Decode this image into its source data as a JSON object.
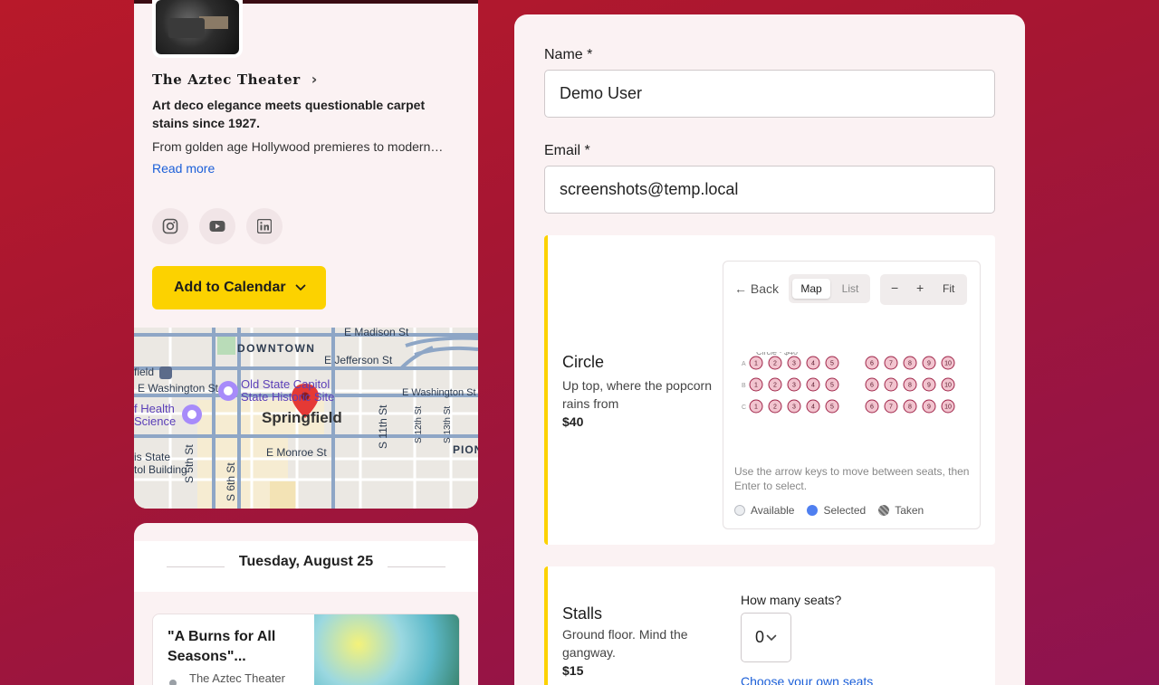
{
  "venue": {
    "name": "The Aztec Theater",
    "tagline": "Art deco elegance meets questionable carpet stains since 1927.",
    "description": "From golden age Hollywood premieres to modern…",
    "read_more": "Read more",
    "socials": [
      "instagram-icon",
      "youtube-icon",
      "linkedin-icon"
    ],
    "calendar_button": "Add to Calendar"
  },
  "map": {
    "labels": {
      "downtown": "DOWNTOWN",
      "madison": "E Madison St",
      "jefferson": "E Jefferson St",
      "washington_w": "E Washington St",
      "washington_e": "E Washington St",
      "capitol": "Old State Capitol",
      "historic": "State Historic Site",
      "springfield": "Springfield",
      "health": "f Health",
      "science": "Science",
      "field": "field",
      "monroe": "E Monroe St",
      "state_line1": "is State",
      "state_line2": "tol Building",
      "s5": "S 5th St",
      "s6": "S 6th St",
      "s11": "S 11th St",
      "s12": "S 12th St",
      "s13": "S 13th St",
      "pion": "PION"
    }
  },
  "schedule": {
    "date": "Tuesday, August 25",
    "event": {
      "title": "\"A Burns for All Seasons\"...",
      "venue": "The Aztec Theater"
    }
  },
  "form": {
    "name_label": "Name *",
    "name_value": "Demo User",
    "email_label": "Email *",
    "email_value": "screenshots@temp.local",
    "accent_color": "#fcd200",
    "sections": [
      {
        "title": "Circle",
        "description": "Up top, where the popcorn rains from",
        "price": "$40",
        "seatmap": {
          "back": "Back",
          "view_map": "Map",
          "view_list": "List",
          "zoom_out": "−",
          "zoom_in": "+",
          "fit": "Fit",
          "section_caption": "Circle · $40",
          "rows": [
            "A",
            "B",
            "C"
          ],
          "left_seats": [
            "1",
            "2",
            "3",
            "4",
            "5"
          ],
          "right_seats": [
            "6",
            "7",
            "8",
            "9",
            "10"
          ],
          "help": "Use the arrow keys to move between seats, then Enter to select.",
          "legend": {
            "available": "Available",
            "selected": "Selected",
            "taken": "Taken"
          },
          "colors": {
            "seat_fill": "#f2c4cf",
            "seat_stroke": "#a0264a",
            "selected": "#4f7ff0",
            "taken": "#7a7a7a",
            "available": "#e5e7eb"
          }
        }
      },
      {
        "title": "Stalls",
        "description": "Ground floor. Mind the gangway.",
        "price": "$15",
        "seats_label": "How many seats?",
        "seats_value": "0",
        "choose_link": "Choose your own seats"
      }
    ]
  }
}
